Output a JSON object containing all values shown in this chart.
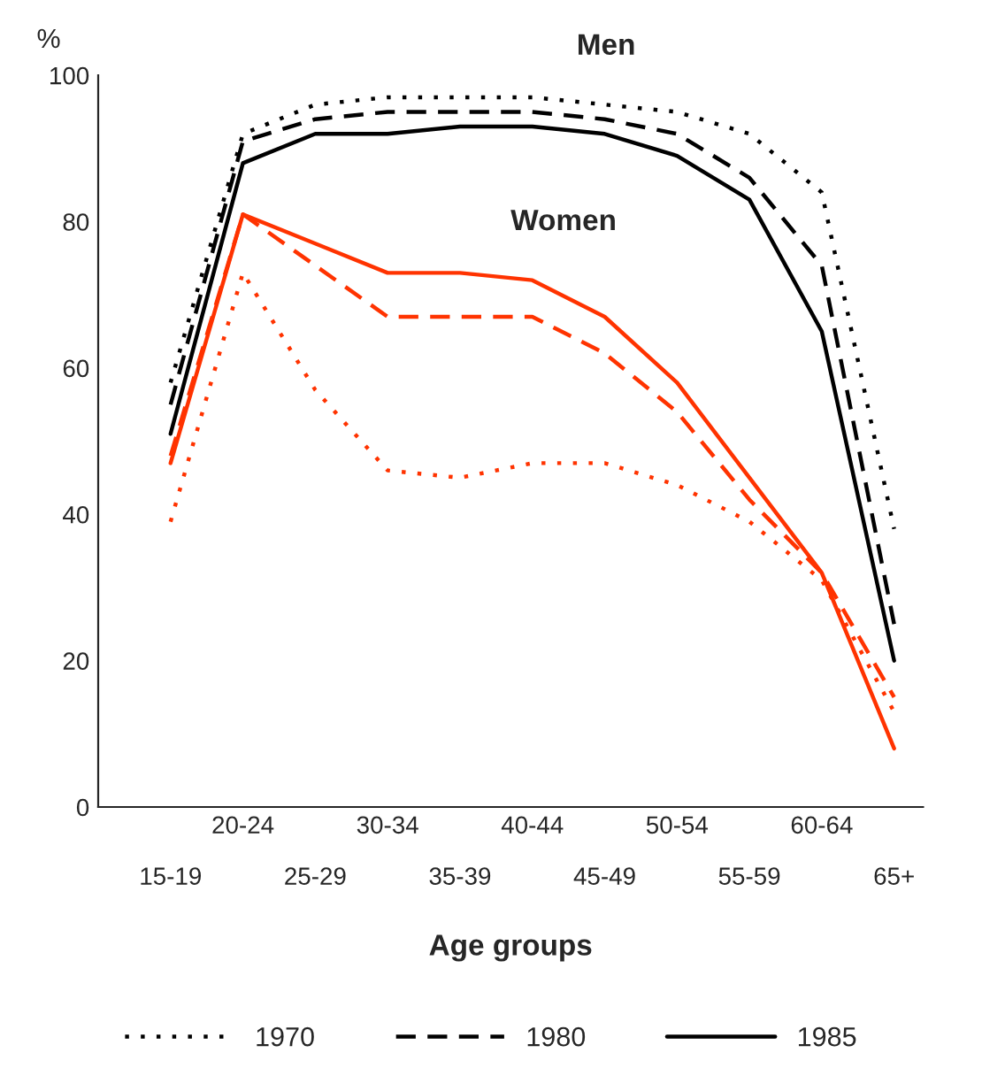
{
  "chart_data": {
    "type": "line",
    "xlabel": "Age groups",
    "ylabel": "%",
    "categories": [
      "15-19",
      "20-24",
      "25-29",
      "30-34",
      "35-39",
      "40-44",
      "45-49",
      "50-54",
      "55-59",
      "60-64",
      "65+"
    ],
    "ylim": [
      0,
      100
    ],
    "yticks": [
      0,
      20,
      40,
      60,
      80,
      100
    ],
    "grid": false,
    "legend": "bottom",
    "marker": "none",
    "annotations": [
      "Men",
      "Women"
    ],
    "series": [
      {
        "name": "1970",
        "color": "#000000",
        "line_style": "dotted",
        "values": [
          58,
          92,
          96,
          97,
          97,
          97,
          96,
          95,
          92,
          84,
          38
        ]
      },
      {
        "name": "1980",
        "color": "#000000",
        "line_style": "dashed",
        "values": [
          55,
          91,
          94,
          95,
          95,
          95,
          94,
          92,
          86,
          74,
          25
        ]
      },
      {
        "name": "1985",
        "color": "#000000",
        "line_style": "solid",
        "values": [
          51,
          88,
          92,
          92,
          93,
          93,
          92,
          89,
          83,
          65,
          20
        ]
      },
      {
        "color": "#ff3300",
        "line_style": "dotted",
        "values": [
          39,
          73,
          57,
          46,
          45,
          47,
          47,
          44,
          39,
          31,
          13
        ]
      },
      {
        "color": "#ff3300",
        "line_style": "dashed",
        "values": [
          48,
          81,
          74,
          67,
          67,
          67,
          62,
          54,
          42,
          32,
          15
        ]
      },
      {
        "color": "#ff3300",
        "line_style": "solid",
        "values": [
          47,
          81,
          77,
          73,
          73,
          72,
          67,
          58,
          45,
          32,
          8
        ]
      }
    ]
  }
}
